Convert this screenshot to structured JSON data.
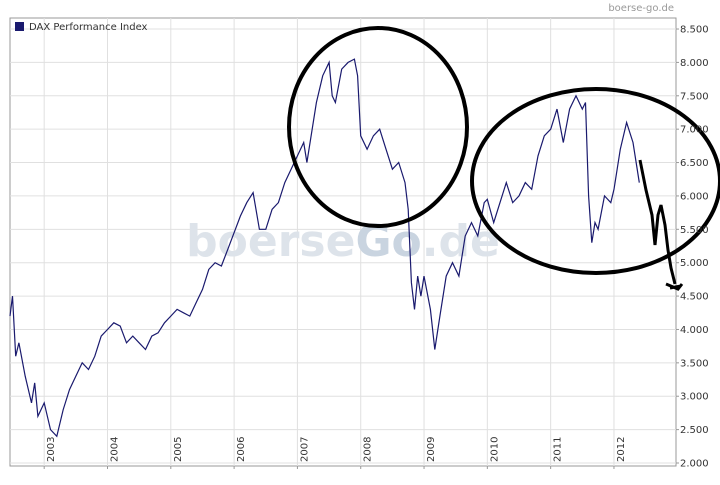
{
  "chart_data": {
    "type": "line",
    "source": "boerse-go.de",
    "watermark_parts": [
      "boerse",
      "Go",
      ".de"
    ],
    "xlim": [
      2002.46,
      2012.98
    ],
    "xticks": [
      2003,
      2004,
      2005,
      2006,
      2007,
      2008,
      2009,
      2010,
      2011,
      2012
    ],
    "ylim": [
      1955,
      8665
    ],
    "yticks": [
      {
        "value": 2000,
        "label": "2.000"
      },
      {
        "value": 2500,
        "label": "2.500"
      },
      {
        "value": 3000,
        "label": "3.000"
      },
      {
        "value": 3500,
        "label": "3.500"
      },
      {
        "value": 4000,
        "label": "4.000"
      },
      {
        "value": 4500,
        "label": "4.500"
      },
      {
        "value": 5000,
        "label": "5.000"
      },
      {
        "value": 5500,
        "label": "5.500"
      },
      {
        "value": 6000,
        "label": "6.000"
      },
      {
        "value": 6500,
        "label": "6.500"
      },
      {
        "value": 7000,
        "label": "7.000"
      },
      {
        "value": 7500,
        "label": "7.500"
      },
      {
        "value": 8000,
        "label": "8.000"
      },
      {
        "value": 8500,
        "label": "8.500"
      }
    ],
    "grid": true,
    "legend": "top-left",
    "series": [
      {
        "name": "DAX Performance Index",
        "color": "#1a1a6e",
        "x": [
          2002.46,
          2002.5,
          2002.55,
          2002.6,
          2002.7,
          2002.8,
          2002.85,
          2002.9,
          2003.0,
          2003.1,
          2003.2,
          2003.3,
          2003.4,
          2003.5,
          2003.6,
          2003.7,
          2003.8,
          2003.9,
          2004.0,
          2004.1,
          2004.2,
          2004.3,
          2004.4,
          2004.5,
          2004.6,
          2004.7,
          2004.8,
          2004.9,
          2005.0,
          2005.1,
          2005.2,
          2005.3,
          2005.4,
          2005.5,
          2005.6,
          2005.7,
          2005.8,
          2005.9,
          2006.0,
          2006.1,
          2006.2,
          2006.3,
          2006.4,
          2006.5,
          2006.6,
          2006.7,
          2006.8,
          2006.9,
          2007.0,
          2007.1,
          2007.15,
          2007.3,
          2007.4,
          2007.5,
          2007.55,
          2007.6,
          2007.7,
          2007.8,
          2007.9,
          2007.95,
          2008.0,
          2008.1,
          2008.2,
          2008.3,
          2008.4,
          2008.5,
          2008.6,
          2008.7,
          2008.75,
          2008.8,
          2008.85,
          2008.9,
          2008.95,
          2009.0,
          2009.1,
          2009.17,
          2009.25,
          2009.35,
          2009.45,
          2009.55,
          2009.65,
          2009.75,
          2009.85,
          2009.95,
          2010.0,
          2010.1,
          2010.2,
          2010.3,
          2010.4,
          2010.5,
          2010.6,
          2010.7,
          2010.8,
          2010.9,
          2011.0,
          2011.1,
          2011.2,
          2011.3,
          2011.4,
          2011.5,
          2011.55,
          2011.6,
          2011.65,
          2011.7,
          2011.75,
          2011.85,
          2011.95,
          2012.0,
          2012.1,
          2012.2,
          2012.3,
          2012.4
        ],
        "values": [
          4200,
          4500,
          3600,
          3800,
          3300,
          2900,
          3200,
          2700,
          2900,
          2500,
          2400,
          2800,
          3100,
          3300,
          3500,
          3400,
          3600,
          3900,
          4000,
          4100,
          4050,
          3800,
          3900,
          3800,
          3700,
          3900,
          3950,
          4100,
          4200,
          4300,
          4250,
          4200,
          4400,
          4600,
          4900,
          5000,
          4950,
          5200,
          5450,
          5700,
          5900,
          6050,
          5500,
          5500,
          5800,
          5900,
          6200,
          6400,
          6600,
          6800,
          6500,
          7400,
          7800,
          8000,
          7500,
          7400,
          7900,
          8000,
          8050,
          7800,
          6900,
          6700,
          6900,
          7000,
          6700,
          6400,
          6500,
          6200,
          5800,
          4700,
          4300,
          4800,
          4500,
          4800,
          4300,
          3700,
          4200,
          4800,
          5000,
          4800,
          5400,
          5600,
          5400,
          5900,
          5950,
          5600,
          5900,
          6200,
          5900,
          6000,
          6200,
          6100,
          6600,
          6900,
          7000,
          7300,
          6800,
          7300,
          7500,
          7300,
          7400,
          6000,
          5300,
          5600,
          5500,
          6000,
          5900,
          6100,
          6700,
          7100,
          6800,
          6200
        ]
      }
    ]
  }
}
